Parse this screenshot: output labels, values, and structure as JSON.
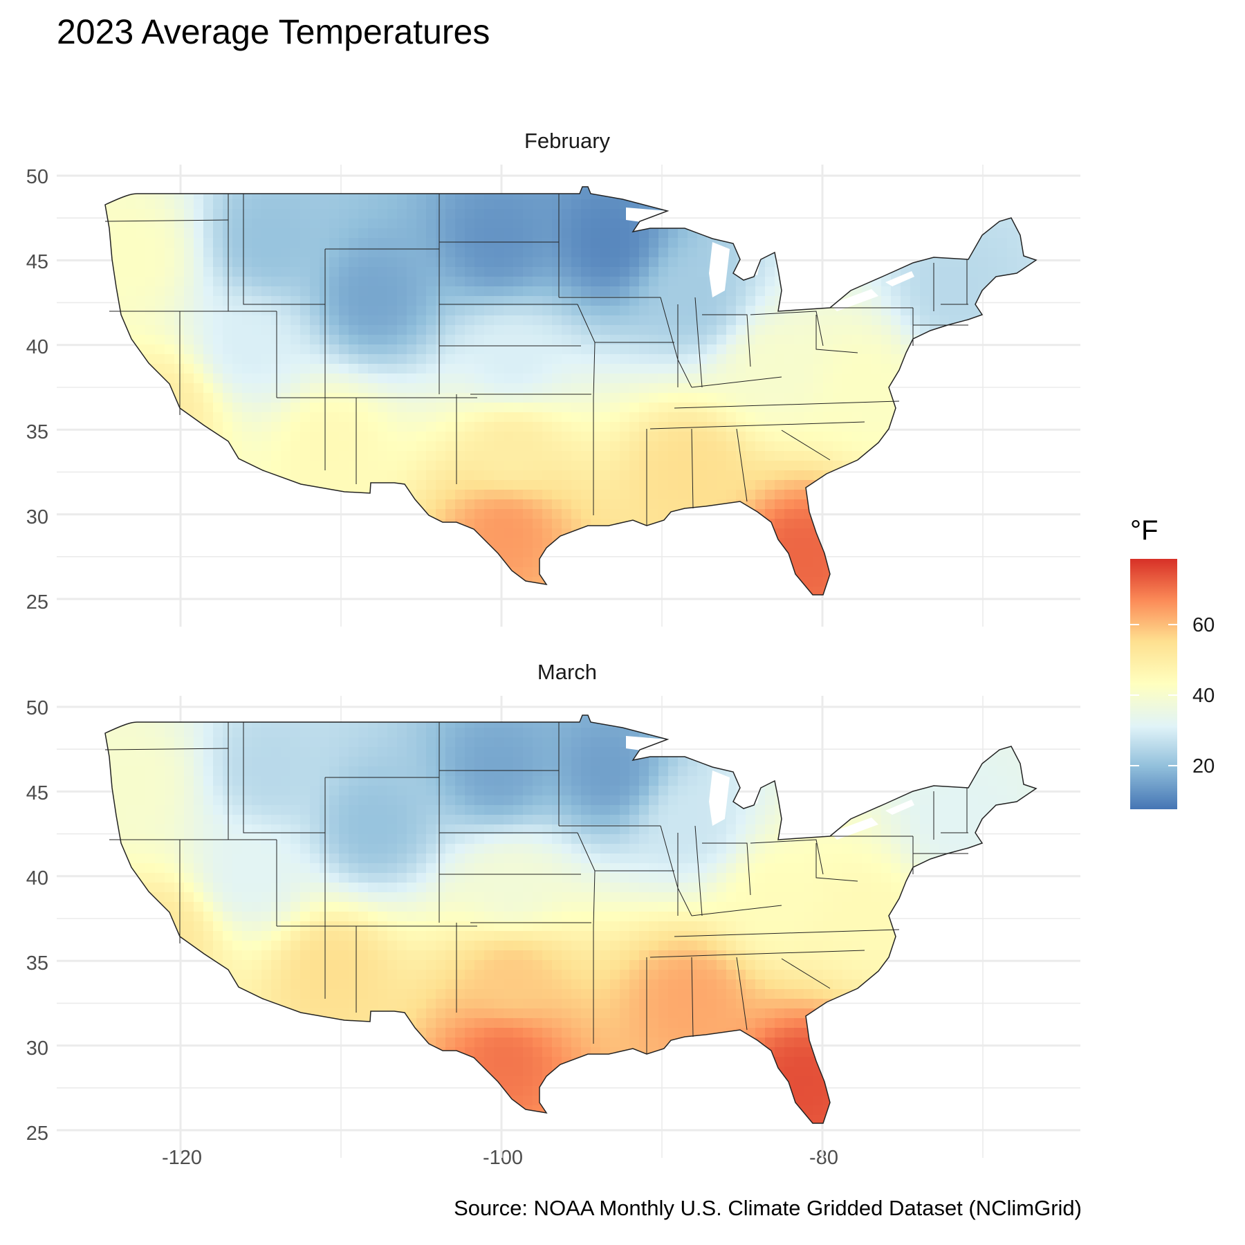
{
  "title": "2023 Average Temperatures",
  "caption": "Source: NOAA Monthly U.S. Climate Gridded Dataset (NClimGrid)",
  "chart_data": {
    "type": "heatmap",
    "title": "2023 Average Temperatures",
    "xlabel": "",
    "ylabel": "",
    "xlim": [
      -127,
      -65
    ],
    "ylim": [
      23.5,
      51
    ],
    "x_ticks": [
      "-120",
      "-100",
      "-80"
    ],
    "y_ticks": [
      "25",
      "30",
      "35",
      "40",
      "45",
      "50"
    ],
    "grid": true,
    "facets": [
      "February",
      "March"
    ],
    "legend": {
      "title": "°F",
      "position": "right",
      "ticks": [
        "20",
        "40",
        "60"
      ],
      "range": [
        7,
        79
      ],
      "colors": [
        "#4575b4",
        "#91bfdb",
        "#e0f3f8",
        "#ffffbf",
        "#fee090",
        "#fc8d59",
        "#d73027"
      ]
    },
    "series": [
      {
        "name": "February",
        "regions": [
          {
            "name": "Pacific Northwest coast",
            "temp_f": 42
          },
          {
            "name": "Northern Rockies",
            "temp_f": 20
          },
          {
            "name": "Wyoming",
            "temp_f": 15
          },
          {
            "name": "Great Basin",
            "temp_f": 30
          },
          {
            "name": "California",
            "temp_f": 50
          },
          {
            "name": "Southwest",
            "temp_f": 45
          },
          {
            "name": "Northern Plains",
            "temp_f": 12
          },
          {
            "name": "Minnesota",
            "temp_f": 10
          },
          {
            "name": "Central Plains",
            "temp_f": 30
          },
          {
            "name": "Upper Midwest",
            "temp_f": 22
          },
          {
            "name": "Ohio Valley",
            "temp_f": 40
          },
          {
            "name": "Northeast",
            "temp_f": 25
          },
          {
            "name": "Mid-Atlantic",
            "temp_f": 42
          },
          {
            "name": "Southern Plains",
            "temp_f": 50
          },
          {
            "name": "Texas Gulf coast",
            "temp_f": 65
          },
          {
            "name": "Deep South",
            "temp_f": 55
          },
          {
            "name": "Florida",
            "temp_f": 72
          }
        ]
      },
      {
        "name": "March",
        "regions": [
          {
            "name": "Pacific Northwest coast",
            "temp_f": 40
          },
          {
            "name": "Northern Rockies",
            "temp_f": 25
          },
          {
            "name": "Wyoming",
            "temp_f": 20
          },
          {
            "name": "Great Basin",
            "temp_f": 32
          },
          {
            "name": "California",
            "temp_f": 52
          },
          {
            "name": "Southwest",
            "temp_f": 55
          },
          {
            "name": "Northern Plains",
            "temp_f": 15
          },
          {
            "name": "Minnesota",
            "temp_f": 14
          },
          {
            "name": "Central Plains",
            "temp_f": 38
          },
          {
            "name": "Upper Midwest",
            "temp_f": 28
          },
          {
            "name": "Ohio Valley",
            "temp_f": 44
          },
          {
            "name": "Northeast",
            "temp_f": 32
          },
          {
            "name": "Mid-Atlantic",
            "temp_f": 45
          },
          {
            "name": "Southern Plains",
            "temp_f": 58
          },
          {
            "name": "Texas Gulf coast",
            "temp_f": 70
          },
          {
            "name": "Deep South",
            "temp_f": 63
          },
          {
            "name": "Florida",
            "temp_f": 75
          }
        ]
      }
    ]
  }
}
